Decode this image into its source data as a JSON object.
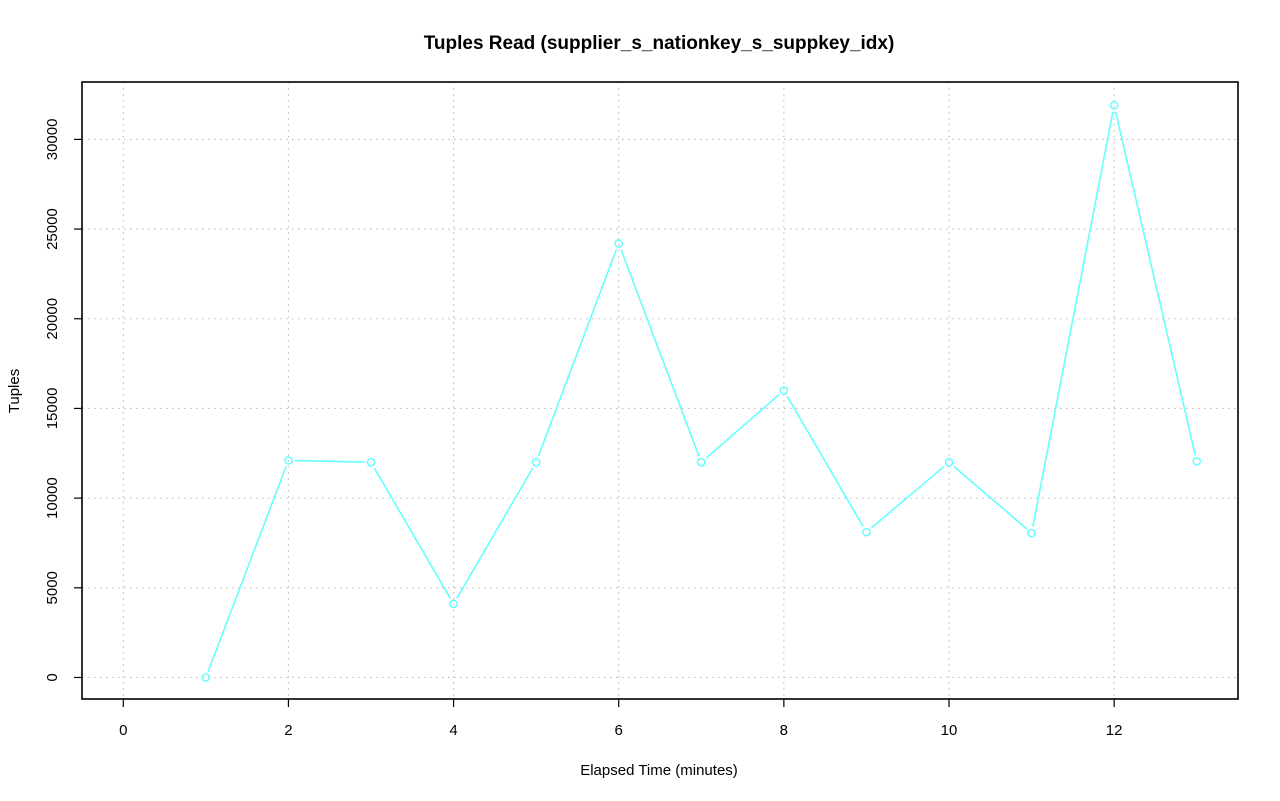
{
  "chart_data": {
    "type": "line",
    "title": "Tuples Read (supplier_s_nationkey_s_suppkey_idx)",
    "xlabel": "Elapsed Time (minutes)",
    "ylabel": "Tuples",
    "xlim": [
      -0.5,
      13.5
    ],
    "ylim": [
      -1200,
      33200
    ],
    "x_ticks": [
      0,
      2,
      4,
      6,
      8,
      10,
      12
    ],
    "y_ticks": [
      0,
      5000,
      10000,
      15000,
      20000,
      25000,
      30000
    ],
    "grid": true,
    "grid_style": "dotted",
    "marker": "open-circle",
    "series": [
      {
        "color": "#66ffff",
        "x": [
          1,
          2,
          3,
          4,
          5,
          6,
          7,
          8,
          9,
          10,
          11,
          12,
          13
        ],
        "values": [
          0,
          12100,
          12000,
          4100,
          12000,
          24200,
          12000,
          16000,
          8100,
          12000,
          8050,
          31900,
          12050
        ]
      }
    ]
  }
}
